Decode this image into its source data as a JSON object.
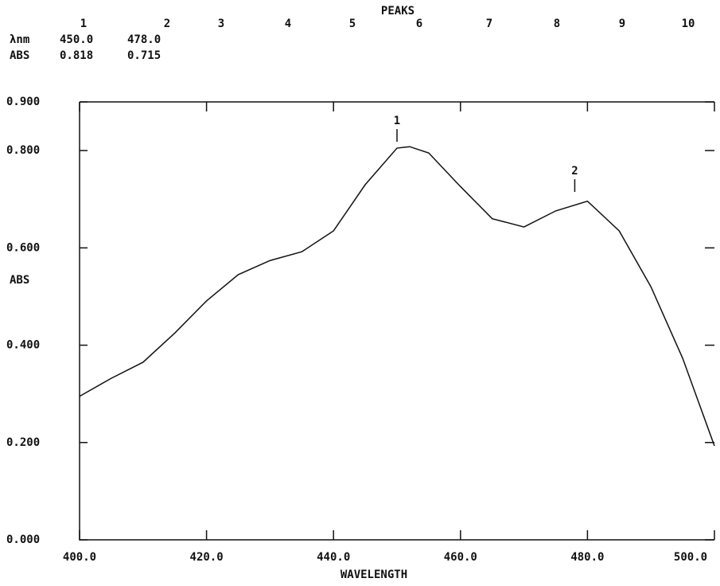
{
  "chart_data": {
    "type": "line",
    "peak_table": {
      "title": "PEAKS",
      "numbers": [
        "1",
        "2",
        "3",
        "4",
        "5",
        "6",
        "7",
        "8",
        "9",
        "10"
      ],
      "rows": [
        {
          "label": "λnm",
          "values": [
            "450.0",
            "478.0"
          ]
        },
        {
          "label": "ABS",
          "values": [
            "0.818",
            "0.715"
          ]
        }
      ]
    },
    "x_label": "WAVELENGTH",
    "y_label": "ABS",
    "x": [
      400,
      405,
      410,
      415,
      420,
      425,
      430,
      435,
      440,
      445,
      450,
      452,
      455,
      460,
      465,
      470,
      475,
      480,
      485,
      490,
      495,
      500
    ],
    "values": [
      0.295,
      0.332,
      0.365,
      0.425,
      0.491,
      0.545,
      0.574,
      0.592,
      0.635,
      0.73,
      0.805,
      0.808,
      0.795,
      0.726,
      0.66,
      0.643,
      0.676,
      0.696,
      0.635,
      0.52,
      0.373,
      0.193
    ],
    "color": "#111111",
    "xlim": [
      400,
      500
    ],
    "ylim": [
      0,
      0.9
    ],
    "xticks": [
      {
        "value": 400,
        "label": "400.0"
      },
      {
        "value": 420,
        "label": "420.0"
      },
      {
        "value": 440,
        "label": "440.0"
      },
      {
        "value": 460,
        "label": "460.0"
      },
      {
        "value": 480,
        "label": "480.0"
      },
      {
        "value": 500,
        "label": "500.0"
      }
    ],
    "yticks": [
      {
        "value": 0,
        "label": "0.000"
      },
      {
        "value": 0.2,
        "label": "0.200"
      },
      {
        "value": 0.4,
        "label": "0.400"
      },
      {
        "value": 0.6,
        "label": "0.600"
      },
      {
        "value": 0.8,
        "label": "0.800"
      },
      {
        "value": 0.9,
        "label": "0.900"
      }
    ],
    "annotations": [
      {
        "label": "1",
        "x": 450,
        "y": 0.818
      },
      {
        "label": "2",
        "x": 478,
        "y": 0.715
      }
    ]
  }
}
